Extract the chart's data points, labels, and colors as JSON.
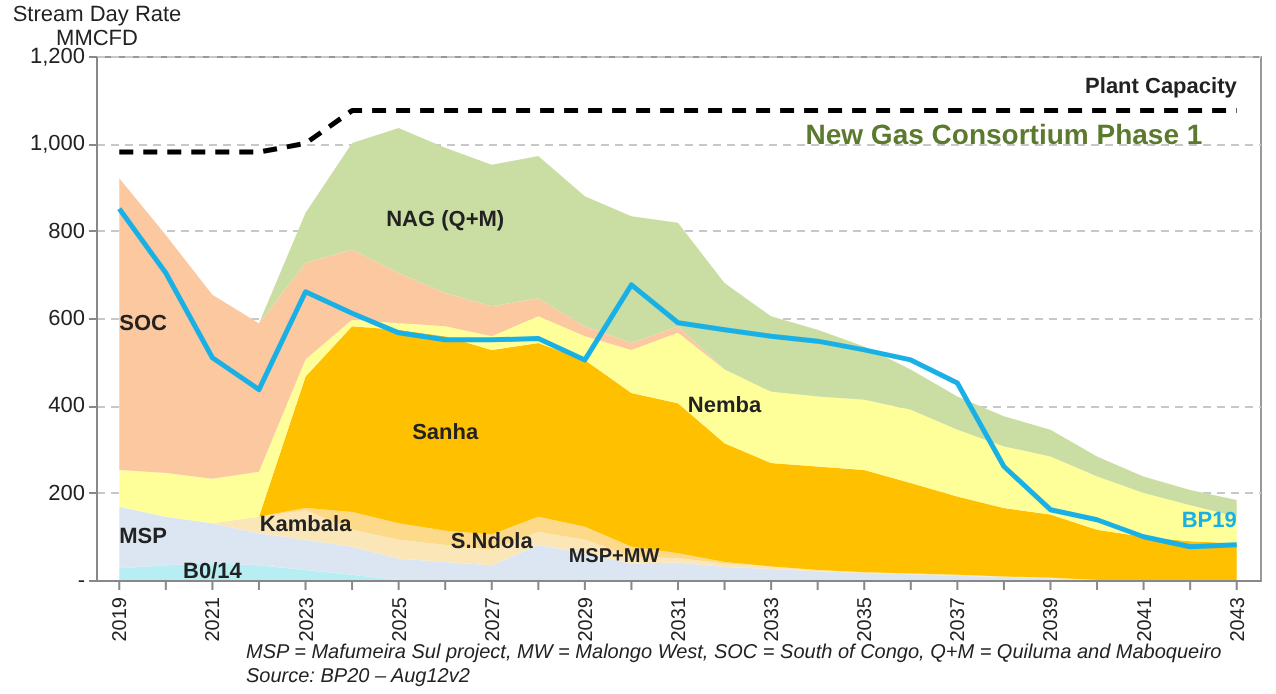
{
  "chart_data": {
    "type": "area",
    "stacked": true,
    "ylabel": "Stream Day Rate\nMMCFD",
    "x": [
      2019,
      2020,
      2021,
      2022,
      2023,
      2024,
      2025,
      2026,
      2027,
      2028,
      2029,
      2030,
      2031,
      2032,
      2033,
      2034,
      2035,
      2036,
      2037,
      2038,
      2039,
      2040,
      2041,
      2042,
      2043
    ],
    "xlim": [
      2018.5,
      2043.5
    ],
    "xticks": [
      2019,
      {
        "value": 2020,
        "label": null
      },
      2021,
      {
        "value": 2022,
        "label": null
      },
      2023,
      {
        "value": 2024,
        "label": null
      },
      2025,
      {
        "value": 2026,
        "label": null
      },
      2027,
      {
        "value": 2028,
        "label": null
      },
      2029,
      {
        "value": 2030,
        "label": null
      },
      2031,
      {
        "value": 2032,
        "label": null
      },
      2033,
      {
        "value": 2034,
        "label": null
      },
      2035,
      {
        "value": 2036,
        "label": null
      },
      2037,
      {
        "value": 2038,
        "label": null
      },
      2039,
      {
        "value": 2040,
        "label": null
      },
      2041,
      {
        "value": 2042,
        "label": null
      },
      2043
    ],
    "ylim": [
      0,
      1200
    ],
    "yticks": [
      {
        "value": 0,
        "label": "-"
      },
      200,
      400,
      600,
      800,
      {
        "value": 1000,
        "label": "1,000"
      },
      {
        "value": 1200,
        "label": "1,200"
      }
    ],
    "grid": "y",
    "marker": "none",
    "series": [
      {
        "name": "B0/14",
        "color": "#b7eef3",
        "values": [
          27,
          34,
          38,
          34,
          23,
          12,
          0,
          null,
          null,
          null,
          null,
          null,
          null,
          null,
          null,
          null,
          null,
          null,
          null,
          null,
          null,
          null,
          null,
          null,
          null
        ]
      },
      {
        "name": "MSP",
        "color": "#dce6f2",
        "values": [
          141,
          111,
          92,
          73,
          69,
          64,
          49,
          41,
          34,
          80,
          61,
          38,
          40,
          30,
          25,
          20,
          16,
          13,
          10,
          7,
          4,
          0,
          null,
          null,
          null
        ]
      },
      {
        "name": "Kambala",
        "color": "#fbe6b8",
        "values": [
          null,
          null,
          0,
          38,
          68,
          39,
          43,
          39,
          35,
          30,
          31,
          15,
          10,
          8,
          6,
          3,
          2,
          2,
          2,
          1,
          1,
          0,
          null,
          null,
          null
        ]
      },
      {
        "name": "S.Ndola",
        "color": "#fdd98a",
        "values": [
          null,
          null,
          null,
          0,
          5,
          41,
          38,
          33,
          35,
          35,
          30,
          23,
          11,
          3,
          0,
          null,
          null,
          null,
          null,
          null,
          null,
          null,
          null,
          null,
          null
        ]
      },
      {
        "name": "Sanha",
        "color": "#ffc000",
        "values": [
          null,
          null,
          null,
          0,
          301,
          425,
          443,
          445,
          423,
          398,
          382,
          352,
          344,
          272,
          237,
          237,
          234,
          207,
          179,
          157,
          145,
          115,
          99,
          89,
          84
        ]
      },
      {
        "name": "Nemba",
        "color": "#ffff99",
        "values": [
          84,
          100,
          102,
          103,
          39,
          15,
          15,
          23,
          31,
          61,
          54,
          99,
          161,
          169,
          163,
          160,
          161,
          168,
          153,
          141,
          133,
          122,
          100,
          82,
          61
        ]
      },
      {
        "name": "SOC",
        "color": "#fbc8a0",
        "values": [
          668,
          545,
          421,
          340,
          221,
          161,
          115,
          76,
          69,
          41,
          23,
          16,
          15,
          0,
          null,
          null,
          null,
          null,
          null,
          null,
          null,
          null,
          null,
          null,
          null
        ]
      },
      {
        "name": "NAG (Q+M)",
        "color": "#cadda3",
        "values": [
          null,
          null,
          null,
          0,
          115,
          244,
          332,
          333,
          324,
          326,
          298,
          290,
          237,
          198,
          173,
          153,
          122,
          92,
          76,
          69,
          61,
          46,
          38,
          35,
          38
        ]
      },
      {
        "name": "Plant Capacity",
        "type": "line",
        "color": "#000000",
        "line_style": "dashed",
        "values": [
          980,
          980,
          980,
          980,
          1000,
          1075,
          1075,
          1075,
          1075,
          1075,
          1075,
          1075,
          1075,
          1075,
          1075,
          1075,
          1075,
          1075,
          1075,
          1075,
          1075,
          1075,
          1075,
          1075,
          1075
        ]
      },
      {
        "name": "BP19",
        "type": "line",
        "color": "#19b0e6",
        "line_style": "solid",
        "values": [
          850,
          703,
          509,
          436,
          660,
          611,
          566,
          550,
          550,
          553,
          504,
          676,
          589,
          573,
          558,
          547,
          527,
          504,
          451,
          260,
          161,
          138,
          99,
          76,
          81
        ]
      }
    ],
    "annotations": [
      "New Gas Consortium Phase 1",
      "MSP+MW",
      "MSP = Mafumeira Sul project, MW = Malongo West, SOC = South of Congo, Q+M = Quiluma and Maboqueiro",
      "Source: BP20 – Aug12v2"
    ]
  }
}
